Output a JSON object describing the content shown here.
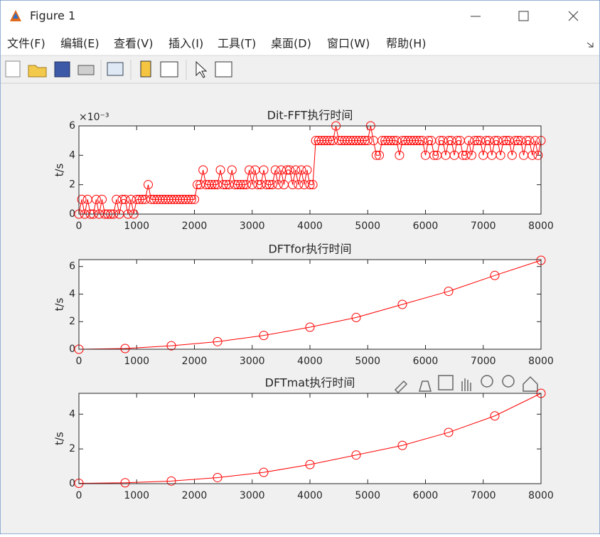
{
  "window": {
    "title": "Figure 1",
    "menu": [
      "文件(F)",
      "编辑(E)",
      "查看(V)",
      "插入(I)",
      "工具(T)",
      "桌面(D)",
      "窗口(W)",
      "帮助(H)"
    ]
  },
  "chart_data": [
    {
      "type": "line",
      "title": "Dit-FFT执行时间",
      "y_label": "t/s",
      "y_exponent": "×10⁻³",
      "x": [
        0,
        50,
        100,
        150,
        200,
        250,
        300,
        350,
        400,
        450,
        500,
        550,
        600,
        650,
        700,
        750,
        800,
        850,
        900,
        950,
        1000,
        1050,
        1100,
        1150,
        1200,
        1250,
        1300,
        1350,
        1400,
        1450,
        1500,
        1550,
        1600,
        1650,
        1700,
        1750,
        1800,
        1850,
        1900,
        1950,
        2000,
        2050,
        2100,
        2150,
        2200,
        2250,
        2300,
        2350,
        2400,
        2450,
        2500,
        2550,
        2600,
        2650,
        2700,
        2750,
        2800,
        2850,
        2900,
        2950,
        3000,
        3050,
        3100,
        3150,
        3200,
        3250,
        3300,
        3350,
        3400,
        3450,
        3500,
        3550,
        3600,
        3650,
        3700,
        3750,
        3800,
        3850,
        3900,
        3950,
        4000,
        4050,
        4100,
        4150,
        4200,
        4250,
        4300,
        4350,
        4400,
        4450,
        4500,
        4550,
        4600,
        4650,
        4700,
        4750,
        4800,
        4850,
        4900,
        4950,
        5000,
        5050,
        5100,
        5150,
        5200,
        5250,
        5300,
        5350,
        5400,
        5450,
        5500,
        5550,
        5600,
        5650,
        5700,
        5750,
        5800,
        5850,
        5900,
        5950,
        6000,
        6050,
        6100,
        6150,
        6200,
        6250,
        6300,
        6350,
        6400,
        6450,
        6500,
        6550,
        6600,
        6650,
        6700,
        6750,
        6800,
        6850,
        6900,
        6950,
        7000,
        7050,
        7100,
        7150,
        7200,
        7250,
        7300,
        7350,
        7400,
        7450,
        7500,
        7550,
        7600,
        7650,
        7700,
        7750,
        7800,
        7850,
        7900,
        7950,
        8000
      ],
      "series": [
        {
          "color": "#ff0000",
          "values": [
            0,
            1,
            0,
            1,
            0,
            0,
            1,
            0,
            1,
            0,
            0,
            0,
            0,
            1,
            0,
            1,
            1,
            0,
            1,
            0,
            1,
            1,
            1,
            1,
            2,
            1,
            1,
            1,
            1,
            1,
            1,
            1,
            1,
            1,
            1,
            1,
            1,
            1,
            1,
            1,
            1,
            2,
            2,
            3,
            2,
            2,
            2,
            2,
            2,
            3,
            2,
            2,
            2,
            3,
            2,
            2,
            2,
            2,
            2,
            3,
            2,
            3,
            2,
            2,
            3,
            2,
            2,
            2,
            3,
            2,
            3,
            2,
            3,
            3,
            2,
            3,
            2,
            3,
            2,
            3,
            2,
            2,
            5,
            5,
            5,
            5,
            5,
            5,
            5,
            6,
            5,
            5,
            5,
            5,
            5,
            5,
            5,
            5,
            5,
            5,
            5,
            6,
            5,
            4,
            4,
            5,
            5,
            5,
            5,
            5,
            5,
            4,
            5,
            5,
            5,
            5,
            5,
            5,
            5,
            5,
            4,
            5,
            5,
            4,
            4,
            5,
            5,
            4,
            5,
            5,
            4,
            5,
            5,
            4,
            4,
            5,
            4,
            5,
            5,
            5,
            4,
            5,
            5,
            4,
            5,
            5,
            4,
            5,
            5,
            5,
            4,
            5,
            5,
            5,
            4,
            5,
            5,
            4,
            5,
            4,
            5
          ]
        }
      ],
      "xlim": [
        0,
        8000
      ],
      "xticks": [
        0,
        1000,
        2000,
        3000,
        4000,
        5000,
        6000,
        7000,
        8000
      ],
      "ylim": [
        0,
        6
      ],
      "yticks": [
        0,
        2,
        4,
        6
      ]
    },
    {
      "type": "line",
      "title": "DFTfor执行时间",
      "y_label": "t/s",
      "x": [
        0,
        800,
        1600,
        2400,
        3200,
        4000,
        4800,
        5600,
        6400,
        7200,
        8000
      ],
      "series": [
        {
          "color": "#ff0000",
          "values": [
            0,
            0.05,
            0.25,
            0.55,
            1.0,
            1.6,
            2.3,
            3.25,
            4.2,
            5.35,
            6.45
          ]
        }
      ],
      "xlim": [
        0,
        8000
      ],
      "xticks": [
        0,
        1000,
        2000,
        3000,
        4000,
        5000,
        6000,
        7000,
        8000
      ],
      "ylim": [
        0,
        6.5
      ],
      "yticks": [
        0,
        2,
        4,
        6
      ]
    },
    {
      "type": "line",
      "title": "DFTmat执行时间",
      "y_label": "t/s",
      "x": [
        0,
        800,
        1600,
        2400,
        3200,
        4000,
        4800,
        5600,
        6400,
        7200,
        8000
      ],
      "series": [
        {
          "color": "#ff0000",
          "values": [
            0.02,
            0.05,
            0.15,
            0.35,
            0.65,
            1.1,
            1.65,
            2.2,
            2.95,
            3.9,
            5.2
          ]
        }
      ],
      "xlim": [
        0,
        8000
      ],
      "xticks": [
        0,
        1000,
        2000,
        3000,
        4000,
        5000,
        6000,
        7000,
        8000
      ],
      "ylim": [
        0,
        5.2
      ],
      "yticks": [
        0,
        2,
        4
      ]
    }
  ]
}
